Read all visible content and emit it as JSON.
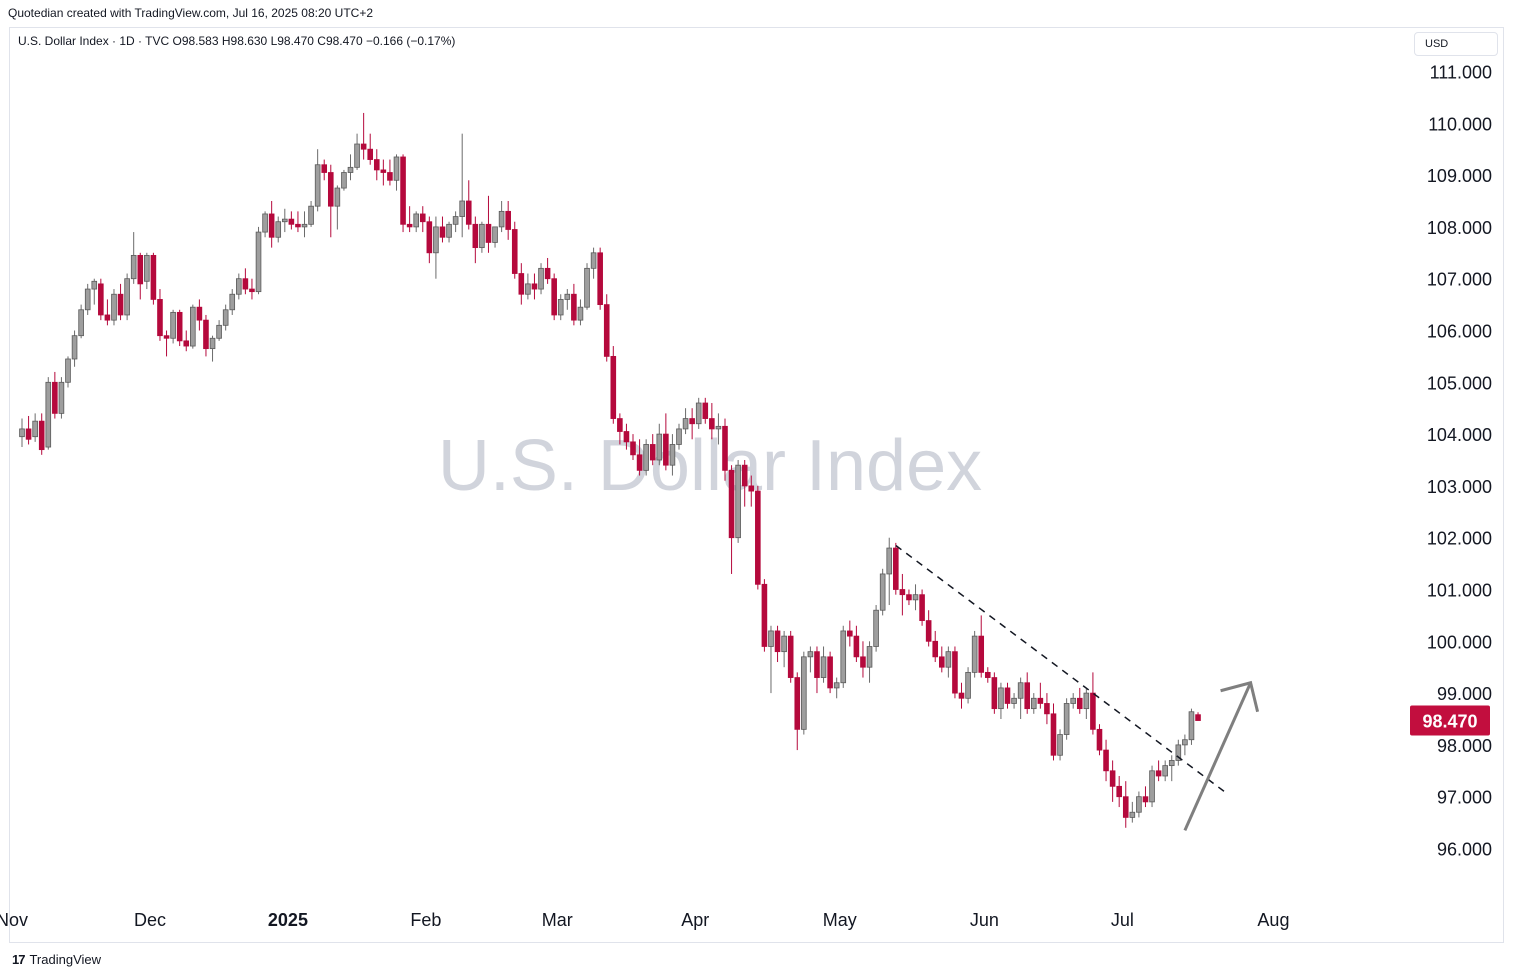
{
  "header": {
    "attribution": "Quotedian created with TradingView.com, Jul 16, 2025 08:20 UTC+2",
    "legend": "U.S. Dollar Index · 1D · TVC  O98.583  H98.630  L98.470  C98.470  −0.166 (−0.17%)",
    "currency": "USD"
  },
  "footer": {
    "brand": "TradingView"
  },
  "colors": {
    "up": "#9e9e9e",
    "down": "#b5093c",
    "price_tag": "#c20e3e",
    "watermark": "#d1d4dc",
    "arrow": "#7f7f7f"
  },
  "chart_data": {
    "type": "candlestick",
    "watermark": "U.S. Dollar Index",
    "ylim": [
      95.0,
      111.8
    ],
    "y_ticks": [
      "111.000",
      "110.000",
      "109.000",
      "108.000",
      "107.000",
      "106.000",
      "105.000",
      "104.000",
      "103.000",
      "102.000",
      "101.000",
      "100.000",
      "99.000",
      "98.000",
      "97.000",
      "96.000"
    ],
    "x_labels": [
      {
        "label": "Nov",
        "index": 0,
        "bold": false
      },
      {
        "label": "Dec",
        "index": 21,
        "bold": false
      },
      {
        "label": "2025",
        "index": 42,
        "bold": true
      },
      {
        "label": "Feb",
        "index": 63,
        "bold": false
      },
      {
        "label": "Mar",
        "index": 83,
        "bold": false
      },
      {
        "label": "Apr",
        "index": 104,
        "bold": false
      },
      {
        "label": "May",
        "index": 126,
        "bold": false
      },
      {
        "label": "Jun",
        "index": 148,
        "bold": false
      },
      {
        "label": "Jul",
        "index": 169,
        "bold": false
      },
      {
        "label": "Aug",
        "index": 192,
        "bold": false
      }
    ],
    "last_price": "98.470",
    "last_value": 98.47,
    "trendline": {
      "start": [
        133,
        101.85
      ],
      "end": [
        183,
        97.1
      ]
    },
    "arrow": {
      "start": [
        177,
        96.35
      ],
      "end": [
        187,
        99.2
      ]
    },
    "candles": [
      [
        103.95,
        104.3,
        103.75,
        104.1
      ],
      [
        104.1,
        104.35,
        103.8,
        103.9
      ],
      [
        103.95,
        104.4,
        103.85,
        104.25
      ],
      [
        104.25,
        104.4,
        103.6,
        103.7
      ],
      [
        103.75,
        105.1,
        103.7,
        105.0
      ],
      [
        105.0,
        105.2,
        104.3,
        104.4
      ],
      [
        104.4,
        105.1,
        104.3,
        105.0
      ],
      [
        105.0,
        105.5,
        104.9,
        105.45
      ],
      [
        105.45,
        106.0,
        105.3,
        105.9
      ],
      [
        105.9,
        106.5,
        105.85,
        106.4
      ],
      [
        106.4,
        106.9,
        106.3,
        106.8
      ],
      [
        106.8,
        107.0,
        106.5,
        106.95
      ],
      [
        106.9,
        107.0,
        106.2,
        106.3
      ],
      [
        106.3,
        106.6,
        106.1,
        106.2
      ],
      [
        106.2,
        106.8,
        106.1,
        106.7
      ],
      [
        106.7,
        106.9,
        106.2,
        106.3
      ],
      [
        106.3,
        107.1,
        106.2,
        107.0
      ],
      [
        107.0,
        107.9,
        106.9,
        107.45
      ],
      [
        107.45,
        107.5,
        106.6,
        106.9
      ],
      [
        106.95,
        107.5,
        106.8,
        107.45
      ],
      [
        107.45,
        107.5,
        106.5,
        106.6
      ],
      [
        106.6,
        106.8,
        105.8,
        105.9
      ],
      [
        105.9,
        106.0,
        105.5,
        105.85
      ],
      [
        105.85,
        106.4,
        105.75,
        106.35
      ],
      [
        106.35,
        106.4,
        105.7,
        105.8
      ],
      [
        105.8,
        106.0,
        105.6,
        105.7
      ],
      [
        105.7,
        106.5,
        105.65,
        106.45
      ],
      [
        106.45,
        106.6,
        106.0,
        106.2
      ],
      [
        106.2,
        106.3,
        105.5,
        105.65
      ],
      [
        105.65,
        105.9,
        105.4,
        105.85
      ],
      [
        105.85,
        106.2,
        105.8,
        106.1
      ],
      [
        106.1,
        106.5,
        106.0,
        106.4
      ],
      [
        106.4,
        106.8,
        106.3,
        106.7
      ],
      [
        106.7,
        107.1,
        106.6,
        107.0
      ],
      [
        107.0,
        107.2,
        106.7,
        106.8
      ],
      [
        106.8,
        107.0,
        106.6,
        106.75
      ],
      [
        106.75,
        108.0,
        106.7,
        107.9
      ],
      [
        107.9,
        108.3,
        107.8,
        108.25
      ],
      [
        108.25,
        108.5,
        107.6,
        107.8
      ],
      [
        107.8,
        108.2,
        107.7,
        108.1
      ],
      [
        108.1,
        108.35,
        107.9,
        108.15
      ],
      [
        108.15,
        108.3,
        107.95,
        108.05
      ],
      [
        108.05,
        108.3,
        107.9,
        108.0
      ],
      [
        108.0,
        108.3,
        107.8,
        108.05
      ],
      [
        108.05,
        108.5,
        108.0,
        108.4
      ],
      [
        108.4,
        109.5,
        108.3,
        109.2
      ],
      [
        109.2,
        109.3,
        108.9,
        109.05
      ],
      [
        109.05,
        109.2,
        107.8,
        108.4
      ],
      [
        108.4,
        108.8,
        107.95,
        108.75
      ],
      [
        108.75,
        109.1,
        108.7,
        109.05
      ],
      [
        109.05,
        109.4,
        108.9,
        109.15
      ],
      [
        109.15,
        109.8,
        109.1,
        109.6
      ],
      [
        109.6,
        110.2,
        109.3,
        109.5
      ],
      [
        109.5,
        109.8,
        109.2,
        109.3
      ],
      [
        109.3,
        109.5,
        108.9,
        109.1
      ],
      [
        109.1,
        109.3,
        108.8,
        109.05
      ],
      [
        109.05,
        109.3,
        108.8,
        108.9
      ],
      [
        108.9,
        109.4,
        108.7,
        109.35
      ],
      [
        109.35,
        109.4,
        107.9,
        108.05
      ],
      [
        108.05,
        108.4,
        107.9,
        108.0
      ],
      [
        108.0,
        108.3,
        107.9,
        108.25
      ],
      [
        108.25,
        108.4,
        107.9,
        108.1
      ],
      [
        108.1,
        108.2,
        107.3,
        107.5
      ],
      [
        107.5,
        108.2,
        107.0,
        108.0
      ],
      [
        108.0,
        108.2,
        107.7,
        107.8
      ],
      [
        107.8,
        108.1,
        107.7,
        108.05
      ],
      [
        108.05,
        108.3,
        107.9,
        108.2
      ],
      [
        108.2,
        109.8,
        107.8,
        108.5
      ],
      [
        108.5,
        108.9,
        107.95,
        108.05
      ],
      [
        108.05,
        108.2,
        107.3,
        107.6
      ],
      [
        107.6,
        108.1,
        107.5,
        108.05
      ],
      [
        108.05,
        108.6,
        107.5,
        107.7
      ],
      [
        107.7,
        108.0,
        107.6,
        108.0
      ],
      [
        108.0,
        108.5,
        107.9,
        108.3
      ],
      [
        108.3,
        108.5,
        107.75,
        107.95
      ],
      [
        107.95,
        108.1,
        107.0,
        107.1
      ],
      [
        107.1,
        107.3,
        106.5,
        106.7
      ],
      [
        106.7,
        107.1,
        106.6,
        106.9
      ],
      [
        106.9,
        107.1,
        106.6,
        106.8
      ],
      [
        106.8,
        107.3,
        106.7,
        107.2
      ],
      [
        107.2,
        107.4,
        106.9,
        107.0
      ],
      [
        107.0,
        107.1,
        106.2,
        106.3
      ],
      [
        106.3,
        106.7,
        106.2,
        106.6
      ],
      [
        106.6,
        106.8,
        106.4,
        106.7
      ],
      [
        106.7,
        106.9,
        106.1,
        106.2
      ],
      [
        106.2,
        106.6,
        106.1,
        106.45
      ],
      [
        106.45,
        107.3,
        106.4,
        107.2
      ],
      [
        107.2,
        107.6,
        107.0,
        107.5
      ],
      [
        107.5,
        107.6,
        106.4,
        106.5
      ],
      [
        106.5,
        106.7,
        105.4,
        105.5
      ],
      [
        105.5,
        105.7,
        104.2,
        104.3
      ],
      [
        104.3,
        104.4,
        103.8,
        104.05
      ],
      [
        104.05,
        104.2,
        103.7,
        103.85
      ],
      [
        103.85,
        104.0,
        103.5,
        103.6
      ],
      [
        103.6,
        103.9,
        103.2,
        103.3
      ],
      [
        103.3,
        103.9,
        103.2,
        103.8
      ],
      [
        103.8,
        104.0,
        103.4,
        103.5
      ],
      [
        103.5,
        104.2,
        103.4,
        104.0
      ],
      [
        104.0,
        104.4,
        103.3,
        103.4
      ],
      [
        103.4,
        104.0,
        103.2,
        103.8
      ],
      [
        103.8,
        104.2,
        103.7,
        104.1
      ],
      [
        104.1,
        104.5,
        104.0,
        104.3
      ],
      [
        104.3,
        104.5,
        103.9,
        104.2
      ],
      [
        104.2,
        104.7,
        104.1,
        104.6
      ],
      [
        104.6,
        104.7,
        104.2,
        104.3
      ],
      [
        104.3,
        104.6,
        103.9,
        104.1
      ],
      [
        104.1,
        104.4,
        103.8,
        104.15
      ],
      [
        104.15,
        104.3,
        103.1,
        103.3
      ],
      [
        103.3,
        103.4,
        101.3,
        102.0
      ],
      [
        102.0,
        103.5,
        101.9,
        103.4
      ],
      [
        103.4,
        103.5,
        102.6,
        103.0
      ],
      [
        103.0,
        103.2,
        102.6,
        102.9
      ],
      [
        102.9,
        103.0,
        101.0,
        101.1
      ],
      [
        101.1,
        101.2,
        99.8,
        99.9
      ],
      [
        99.9,
        100.3,
        99.0,
        100.2
      ],
      [
        100.2,
        100.3,
        99.6,
        99.8
      ],
      [
        99.8,
        100.2,
        99.5,
        100.1
      ],
      [
        100.1,
        100.2,
        99.2,
        99.3
      ],
      [
        99.3,
        99.4,
        97.9,
        98.3
      ],
      [
        98.3,
        99.8,
        98.2,
        99.7
      ],
      [
        99.7,
        99.9,
        99.4,
        99.8
      ],
      [
        99.8,
        99.9,
        99.0,
        99.3
      ],
      [
        99.3,
        99.9,
        99.2,
        99.7
      ],
      [
        99.7,
        99.8,
        99.0,
        99.1
      ],
      [
        99.1,
        99.3,
        98.9,
        99.2
      ],
      [
        99.2,
        100.3,
        99.1,
        100.2
      ],
      [
        100.2,
        100.4,
        99.9,
        100.1
      ],
      [
        100.1,
        100.3,
        99.6,
        99.7
      ],
      [
        99.7,
        100.0,
        99.3,
        99.5
      ],
      [
        99.5,
        100.0,
        99.2,
        99.9
      ],
      [
        99.9,
        100.7,
        99.8,
        100.6
      ],
      [
        100.6,
        101.4,
        100.5,
        101.3
      ],
      [
        101.3,
        102.0,
        100.7,
        101.8
      ],
      [
        101.8,
        101.9,
        100.9,
        101.0
      ],
      [
        101.0,
        101.3,
        100.5,
        100.9
      ],
      [
        100.9,
        101.0,
        100.7,
        100.8
      ],
      [
        100.8,
        101.1,
        100.6,
        100.9
      ],
      [
        100.9,
        101.0,
        100.3,
        100.4
      ],
      [
        100.4,
        100.6,
        99.9,
        100.0
      ],
      [
        100.0,
        100.2,
        99.6,
        99.7
      ],
      [
        99.7,
        99.9,
        99.4,
        99.5
      ],
      [
        99.5,
        99.9,
        99.3,
        99.8
      ],
      [
        99.8,
        99.9,
        98.9,
        99.0
      ],
      [
        99.0,
        99.2,
        98.7,
        98.9
      ],
      [
        98.9,
        99.5,
        98.8,
        99.4
      ],
      [
        99.4,
        100.2,
        99.3,
        100.1
      ],
      [
        100.1,
        100.5,
        99.3,
        99.4
      ],
      [
        99.4,
        99.5,
        99.2,
        99.3
      ],
      [
        99.3,
        99.4,
        98.6,
        98.7
      ],
      [
        98.7,
        99.2,
        98.5,
        99.1
      ],
      [
        99.1,
        99.2,
        98.7,
        98.8
      ],
      [
        98.8,
        99.0,
        98.7,
        98.9
      ],
      [
        98.9,
        99.3,
        98.5,
        99.2
      ],
      [
        99.2,
        99.4,
        98.6,
        98.7
      ],
      [
        98.7,
        99.0,
        98.6,
        98.9
      ],
      [
        98.9,
        99.2,
        98.7,
        98.8
      ],
      [
        98.8,
        99.0,
        98.4,
        98.6
      ],
      [
        98.6,
        98.8,
        97.7,
        97.8
      ],
      [
        97.8,
        98.3,
        97.7,
        98.2
      ],
      [
        98.2,
        98.9,
        98.1,
        98.8
      ],
      [
        98.8,
        99.0,
        98.7,
        98.9
      ],
      [
        98.9,
        99.1,
        98.6,
        98.7
      ],
      [
        98.7,
        99.1,
        98.5,
        99.0
      ],
      [
        99.0,
        99.4,
        98.2,
        98.3
      ],
      [
        98.3,
        98.4,
        97.8,
        97.9
      ],
      [
        97.9,
        98.1,
        97.3,
        97.5
      ],
      [
        97.5,
        97.7,
        96.9,
        97.2
      ],
      [
        97.2,
        97.4,
        96.8,
        97.0
      ],
      [
        97.0,
        97.3,
        96.4,
        96.6
      ],
      [
        96.6,
        96.9,
        96.5,
        96.7
      ],
      [
        96.7,
        97.1,
        96.6,
        97.0
      ],
      [
        97.0,
        97.2,
        96.8,
        96.9
      ],
      [
        96.9,
        97.6,
        96.8,
        97.5
      ],
      [
        97.5,
        97.7,
        97.3,
        97.4
      ],
      [
        97.4,
        97.7,
        97.3,
        97.6
      ],
      [
        97.6,
        97.8,
        97.3,
        97.7
      ],
      [
        97.7,
        98.1,
        97.6,
        98.0
      ],
      [
        98.0,
        98.2,
        97.8,
        98.1
      ],
      [
        98.1,
        98.7,
        98.0,
        98.64
      ],
      [
        98.583,
        98.63,
        98.47,
        98.47
      ]
    ]
  }
}
